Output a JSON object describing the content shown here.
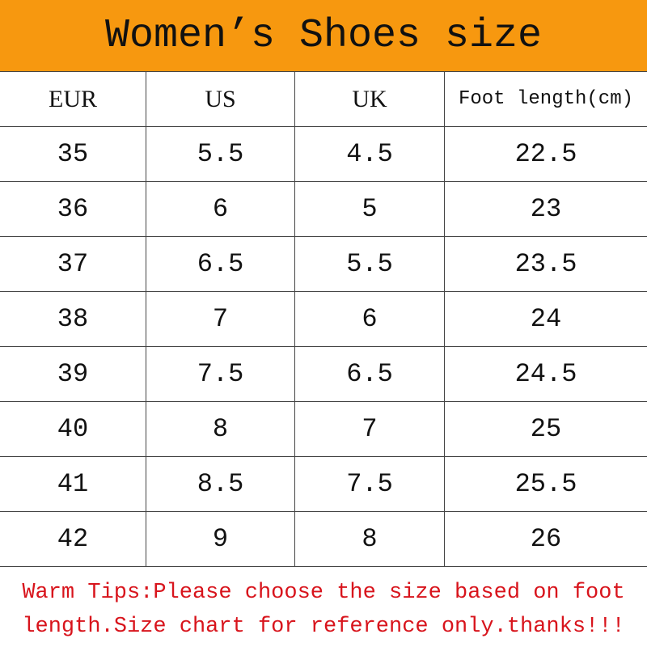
{
  "title": "Women’s Shoes size",
  "colors": {
    "header_bg": "#f7980f",
    "tips_text": "#d8141c"
  },
  "headers": [
    "EUR",
    "US",
    "UK",
    "Foot length(cm)"
  ],
  "rows": [
    [
      "35",
      "5.5",
      "4.5",
      "22.5"
    ],
    [
      "36",
      "6",
      "5",
      "23"
    ],
    [
      "37",
      "6.5",
      "5.5",
      "23.5"
    ],
    [
      "38",
      "7",
      "6",
      "24"
    ],
    [
      "39",
      "7.5",
      "6.5",
      "24.5"
    ],
    [
      "40",
      "8",
      "7",
      "25"
    ],
    [
      "41",
      "8.5",
      "7.5",
      "25.5"
    ],
    [
      "42",
      "9",
      "8",
      "26"
    ]
  ],
  "tips": {
    "line1": "Warm Tips:Please choose the size based on foot",
    "line2": "length.Size chart for reference only.thanks!!!"
  }
}
